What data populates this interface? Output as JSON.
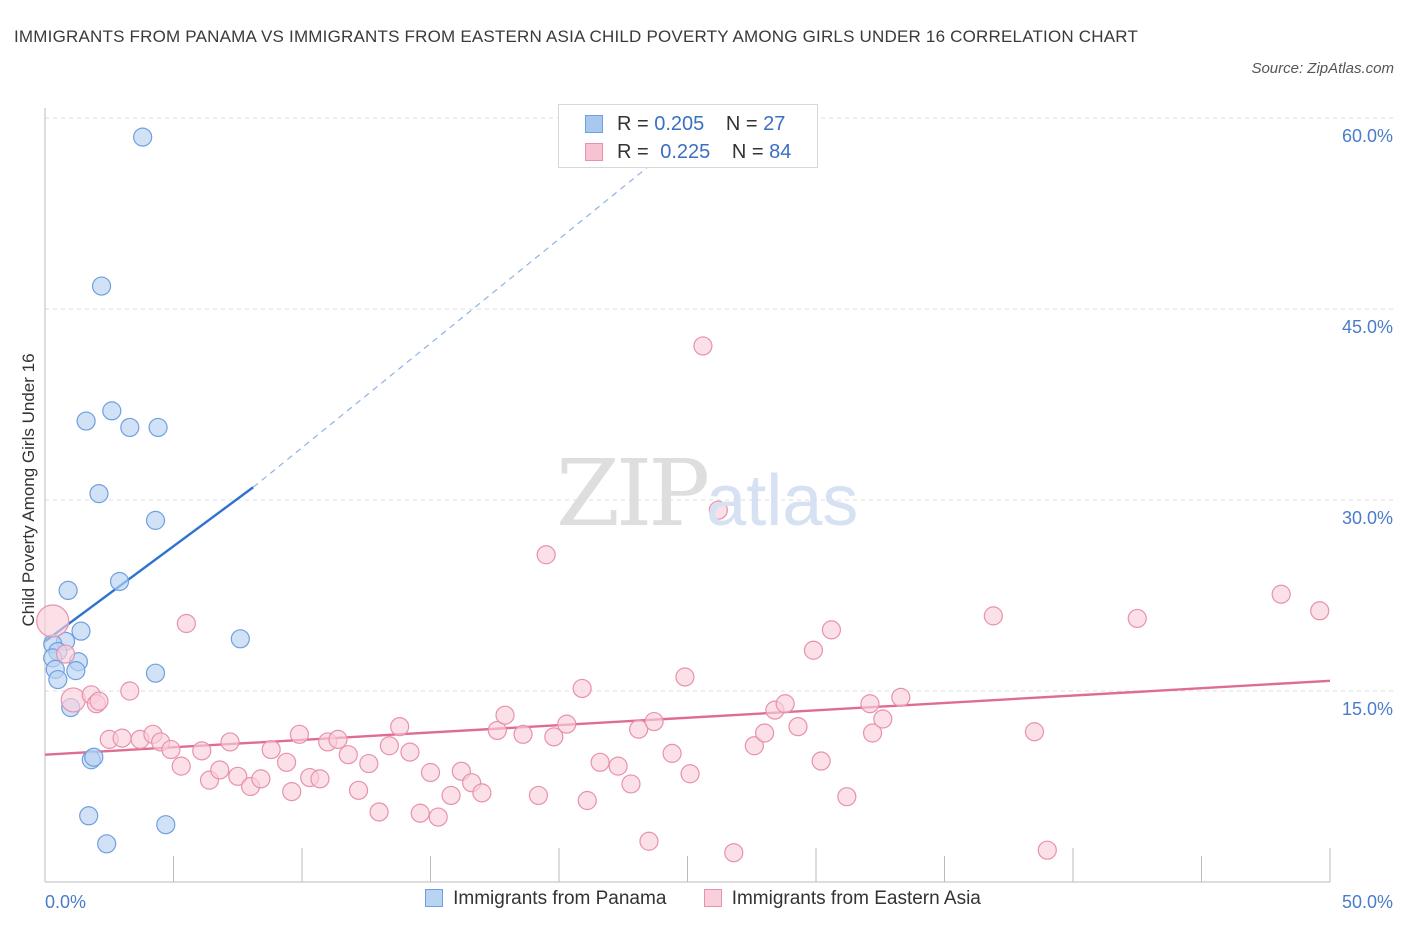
{
  "title": "IMMIGRANTS FROM PANAMA VS IMMIGRANTS FROM EASTERN ASIA CHILD POVERTY AMONG GIRLS UNDER 16 CORRELATION CHART",
  "source": "Source: ZipAtlas.com",
  "watermark": {
    "zip": "ZIP",
    "atlas": "atlas"
  },
  "legend": {
    "r_label": "R =",
    "n_label": "N =",
    "rows": [
      {
        "r": "0.205",
        "n": "27",
        "color": "#a9c8f0",
        "border": "#6f9fe0"
      },
      {
        "r": "0.225",
        "n": "84",
        "color": "#f7c3d3",
        "border": "#e891ad"
      }
    ]
  },
  "bottom_legend": [
    {
      "label": "Immigrants from Panama",
      "color": "#b9d3f3",
      "border": "#6f9fe0"
    },
    {
      "label": "Immigrants from Eastern Asia",
      "color": "#f9cfdc",
      "border": "#e891ad"
    }
  ],
  "chart_data": {
    "type": "scatter",
    "ylabel": "Child Poverty Among Girls Under 16",
    "xlim": [
      0,
      50
    ],
    "ylim": [
      0,
      60
    ],
    "x_tick_labels": [
      "0.0%",
      "50.0%"
    ],
    "y_ticks": [
      15,
      30,
      45,
      60
    ],
    "y_tick_labels": [
      "15.0%",
      "30.0%",
      "45.0%",
      "60.0%"
    ],
    "grid": true,
    "series": [
      {
        "name": "Immigrants from Panama",
        "color": "#6f9fe0",
        "fill": "#b9d3f3",
        "trend": {
          "x0": 0,
          "y0": 18.9,
          "x1": 8.1,
          "y1": 31.0,
          "dash_to_x": 25.5,
          "dash_to_y": 59.5,
          "color": "#2f72cf"
        },
        "points": [
          {
            "x": 3.8,
            "y": 58.5,
            "s": 9
          },
          {
            "x": 2.2,
            "y": 46.8,
            "s": 9
          },
          {
            "x": 1.6,
            "y": 36.2,
            "s": 9
          },
          {
            "x": 2.6,
            "y": 37.0,
            "s": 9
          },
          {
            "x": 3.3,
            "y": 35.7,
            "s": 9
          },
          {
            "x": 4.4,
            "y": 35.7,
            "s": 9
          },
          {
            "x": 2.1,
            "y": 30.5,
            "s": 9
          },
          {
            "x": 4.3,
            "y": 28.4,
            "s": 9
          },
          {
            "x": 2.9,
            "y": 23.6,
            "s": 9
          },
          {
            "x": 0.9,
            "y": 22.9,
            "s": 9
          },
          {
            "x": 1.4,
            "y": 19.7,
            "s": 9
          },
          {
            "x": 7.6,
            "y": 19.1,
            "s": 9
          },
          {
            "x": 0.8,
            "y": 18.9,
            "s": 9
          },
          {
            "x": 0.3,
            "y": 18.7,
            "s": 9
          },
          {
            "x": 0.5,
            "y": 18.1,
            "s": 9
          },
          {
            "x": 0.3,
            "y": 17.6,
            "s": 9
          },
          {
            "x": 1.3,
            "y": 17.3,
            "s": 9
          },
          {
            "x": 0.4,
            "y": 16.7,
            "s": 9
          },
          {
            "x": 1.2,
            "y": 16.6,
            "s": 9
          },
          {
            "x": 4.3,
            "y": 16.4,
            "s": 9
          },
          {
            "x": 0.5,
            "y": 15.9,
            "s": 9
          },
          {
            "x": 1.0,
            "y": 13.7,
            "s": 9
          },
          {
            "x": 1.8,
            "y": 9.6,
            "s": 9
          },
          {
            "x": 1.9,
            "y": 9.8,
            "s": 9
          },
          {
            "x": 1.7,
            "y": 5.2,
            "s": 9
          },
          {
            "x": 4.7,
            "y": 4.5,
            "s": 9
          },
          {
            "x": 2.4,
            "y": 3.0,
            "s": 9
          }
        ]
      },
      {
        "name": "Immigrants from Eastern Asia",
        "color": "#e891ad",
        "fill": "#f9cfdc",
        "trend": {
          "x0": 0,
          "y0": 10.0,
          "x1": 50,
          "y1": 15.8,
          "color": "#e06c94"
        },
        "points": [
          {
            "x": 0.3,
            "y": 20.5,
            "s": 16
          },
          {
            "x": 0.8,
            "y": 17.9,
            "s": 9
          },
          {
            "x": 1.1,
            "y": 14.3,
            "s": 12
          },
          {
            "x": 1.8,
            "y": 14.7,
            "s": 9
          },
          {
            "x": 2.0,
            "y": 14.0,
            "s": 9
          },
          {
            "x": 2.1,
            "y": 14.2,
            "s": 9
          },
          {
            "x": 3.3,
            "y": 15.0,
            "s": 9
          },
          {
            "x": 5.5,
            "y": 20.3,
            "s": 9
          },
          {
            "x": 2.5,
            "y": 11.2,
            "s": 9
          },
          {
            "x": 3.0,
            "y": 11.3,
            "s": 9
          },
          {
            "x": 3.7,
            "y": 11.2,
            "s": 9
          },
          {
            "x": 4.2,
            "y": 11.6,
            "s": 9
          },
          {
            "x": 4.5,
            "y": 11.0,
            "s": 9
          },
          {
            "x": 4.9,
            "y": 10.4,
            "s": 9
          },
          {
            "x": 5.3,
            "y": 9.1,
            "s": 9
          },
          {
            "x": 6.1,
            "y": 10.3,
            "s": 9
          },
          {
            "x": 6.4,
            "y": 8.0,
            "s": 9
          },
          {
            "x": 6.8,
            "y": 8.8,
            "s": 9
          },
          {
            "x": 7.2,
            "y": 11.0,
            "s": 9
          },
          {
            "x": 7.5,
            "y": 8.3,
            "s": 9
          },
          {
            "x": 8.0,
            "y": 7.5,
            "s": 9
          },
          {
            "x": 8.4,
            "y": 8.1,
            "s": 9
          },
          {
            "x": 8.8,
            "y": 10.4,
            "s": 9
          },
          {
            "x": 9.4,
            "y": 9.4,
            "s": 9
          },
          {
            "x": 9.6,
            "y": 7.1,
            "s": 9
          },
          {
            "x": 9.9,
            "y": 11.6,
            "s": 9
          },
          {
            "x": 10.3,
            "y": 8.2,
            "s": 9
          },
          {
            "x": 10.7,
            "y": 8.1,
            "s": 9
          },
          {
            "x": 11.0,
            "y": 11.0,
            "s": 9
          },
          {
            "x": 11.4,
            "y": 11.2,
            "s": 9
          },
          {
            "x": 11.8,
            "y": 10.0,
            "s": 9
          },
          {
            "x": 12.2,
            "y": 7.2,
            "s": 9
          },
          {
            "x": 12.6,
            "y": 9.3,
            "s": 9
          },
          {
            "x": 13.0,
            "y": 5.5,
            "s": 9
          },
          {
            "x": 13.4,
            "y": 10.7,
            "s": 9
          },
          {
            "x": 13.8,
            "y": 12.2,
            "s": 9
          },
          {
            "x": 14.2,
            "y": 10.2,
            "s": 9
          },
          {
            "x": 14.6,
            "y": 5.4,
            "s": 9
          },
          {
            "x": 15.0,
            "y": 8.6,
            "s": 9
          },
          {
            "x": 15.3,
            "y": 5.1,
            "s": 9
          },
          {
            "x": 15.8,
            "y": 6.8,
            "s": 9
          },
          {
            "x": 16.2,
            "y": 8.7,
            "s": 9
          },
          {
            "x": 16.6,
            "y": 7.8,
            "s": 9
          },
          {
            "x": 17.0,
            "y": 7.0,
            "s": 9
          },
          {
            "x": 17.6,
            "y": 11.9,
            "s": 9
          },
          {
            "x": 17.9,
            "y": 13.1,
            "s": 9
          },
          {
            "x": 18.6,
            "y": 11.6,
            "s": 9
          },
          {
            "x": 19.2,
            "y": 6.8,
            "s": 9
          },
          {
            "x": 19.5,
            "y": 25.7,
            "s": 9
          },
          {
            "x": 19.8,
            "y": 11.4,
            "s": 9
          },
          {
            "x": 20.3,
            "y": 12.4,
            "s": 9
          },
          {
            "x": 20.9,
            "y": 15.2,
            "s": 9
          },
          {
            "x": 21.1,
            "y": 6.4,
            "s": 9
          },
          {
            "x": 21.6,
            "y": 9.4,
            "s": 9
          },
          {
            "x": 22.3,
            "y": 9.1,
            "s": 9
          },
          {
            "x": 22.8,
            "y": 7.7,
            "s": 9
          },
          {
            "x": 23.1,
            "y": 12.0,
            "s": 9
          },
          {
            "x": 23.5,
            "y": 3.2,
            "s": 9
          },
          {
            "x": 23.7,
            "y": 12.6,
            "s": 9
          },
          {
            "x": 24.4,
            "y": 10.1,
            "s": 9
          },
          {
            "x": 24.9,
            "y": 16.1,
            "s": 9
          },
          {
            "x": 25.1,
            "y": 8.5,
            "s": 9
          },
          {
            "x": 25.6,
            "y": 42.1,
            "s": 9
          },
          {
            "x": 26.2,
            "y": 29.2,
            "s": 9
          },
          {
            "x": 26.8,
            "y": 2.3,
            "s": 9
          },
          {
            "x": 27.6,
            "y": 10.7,
            "s": 9
          },
          {
            "x": 28.0,
            "y": 11.7,
            "s": 9
          },
          {
            "x": 28.4,
            "y": 13.5,
            "s": 9
          },
          {
            "x": 28.8,
            "y": 14.0,
            "s": 9
          },
          {
            "x": 29.3,
            "y": 12.2,
            "s": 9
          },
          {
            "x": 29.9,
            "y": 18.2,
            "s": 9
          },
          {
            "x": 30.2,
            "y": 9.5,
            "s": 9
          },
          {
            "x": 30.6,
            "y": 19.8,
            "s": 9
          },
          {
            "x": 31.2,
            "y": 6.7,
            "s": 9
          },
          {
            "x": 32.1,
            "y": 14.0,
            "s": 9
          },
          {
            "x": 32.2,
            "y": 11.7,
            "s": 9
          },
          {
            "x": 32.6,
            "y": 12.8,
            "s": 9
          },
          {
            "x": 33.3,
            "y": 14.5,
            "s": 9
          },
          {
            "x": 36.9,
            "y": 20.9,
            "s": 9
          },
          {
            "x": 38.5,
            "y": 11.8,
            "s": 9
          },
          {
            "x": 39.0,
            "y": 2.5,
            "s": 9
          },
          {
            "x": 42.5,
            "y": 20.7,
            "s": 9
          },
          {
            "x": 48.1,
            "y": 22.6,
            "s": 9
          },
          {
            "x": 49.6,
            "y": 21.3,
            "s": 9
          }
        ]
      }
    ]
  }
}
